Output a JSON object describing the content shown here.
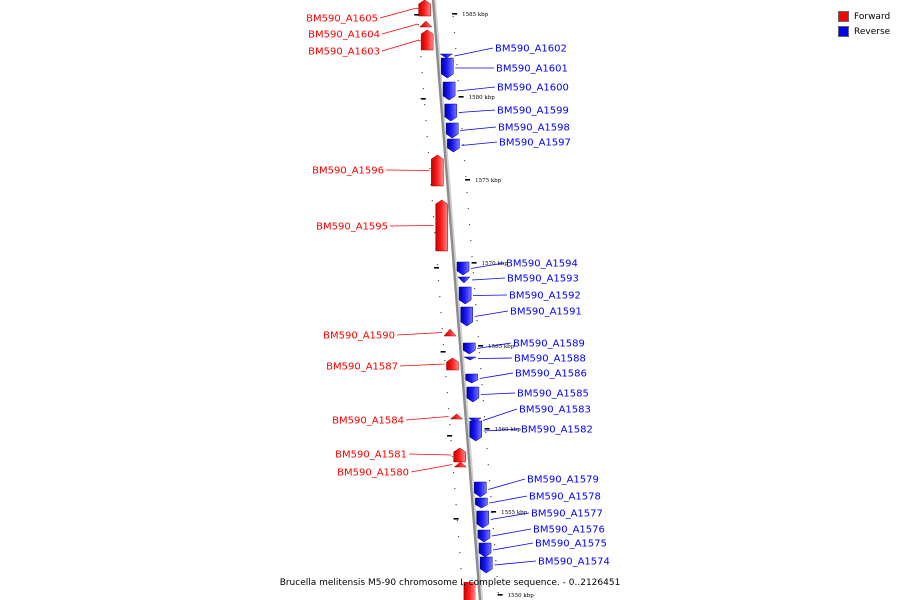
{
  "legend": [
    {
      "label": "Forward",
      "color": "#ff0000"
    },
    {
      "label": "Reverse",
      "color": "#0000ff"
    }
  ],
  "colors": {
    "forward": "#ff0000",
    "reverse": "#0000ff",
    "backbone": "#8c8c8c"
  },
  "caption": "Brucella melitensis M5-90 chromosome I, complete sequence. - 0..2126451",
  "kbp_labels": [
    "1585 kbp",
    "1580 kbp",
    "1575 kbp",
    "1570 kbp",
    "1565 kbp",
    "1560 kbp",
    "1555 kbp",
    "1550 kbp"
  ],
  "genes": [
    {
      "name": "BM590_A1605",
      "strand": "forward"
    },
    {
      "name": "BM590_A1604",
      "strand": "forward"
    },
    {
      "name": "BM590_A1603",
      "strand": "forward"
    },
    {
      "name": "BM590_A1602",
      "strand": "reverse"
    },
    {
      "name": "BM590_A1601",
      "strand": "reverse"
    },
    {
      "name": "BM590_A1600",
      "strand": "reverse"
    },
    {
      "name": "BM590_A1599",
      "strand": "reverse"
    },
    {
      "name": "BM590_A1598",
      "strand": "reverse"
    },
    {
      "name": "BM590_A1597",
      "strand": "reverse"
    },
    {
      "name": "BM590_A1596",
      "strand": "forward"
    },
    {
      "name": "BM590_A1595",
      "strand": "forward"
    },
    {
      "name": "BM590_A1594",
      "strand": "reverse"
    },
    {
      "name": "BM590_A1593",
      "strand": "reverse"
    },
    {
      "name": "BM590_A1592",
      "strand": "reverse"
    },
    {
      "name": "BM590_A1591",
      "strand": "reverse"
    },
    {
      "name": "BM590_A1590",
      "strand": "forward"
    },
    {
      "name": "BM590_A1589",
      "strand": "reverse"
    },
    {
      "name": "BM590_A1588",
      "strand": "reverse"
    },
    {
      "name": "BM590_A1587",
      "strand": "forward"
    },
    {
      "name": "BM590_A1586",
      "strand": "reverse"
    },
    {
      "name": "BM590_A1585",
      "strand": "reverse"
    },
    {
      "name": "BM590_A1584",
      "strand": "forward"
    },
    {
      "name": "BM590_A1583",
      "strand": "reverse"
    },
    {
      "name": "BM590_A1582",
      "strand": "reverse"
    },
    {
      "name": "BM590_A1581",
      "strand": "forward"
    },
    {
      "name": "BM590_A1580",
      "strand": "forward"
    },
    {
      "name": "BM590_A1579",
      "strand": "reverse"
    },
    {
      "name": "BM590_A1578",
      "strand": "reverse"
    },
    {
      "name": "BM590_A1577",
      "strand": "reverse"
    },
    {
      "name": "BM590_A1576",
      "strand": "reverse"
    },
    {
      "name": "BM590_A1575",
      "strand": "reverse"
    },
    {
      "name": "BM590_A1574",
      "strand": "reverse"
    }
  ]
}
